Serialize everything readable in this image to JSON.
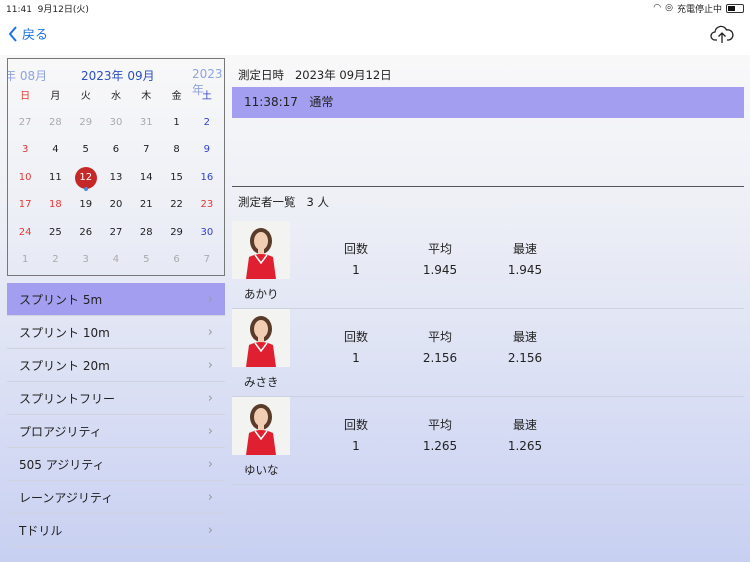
{
  "status_bar": {
    "time": "11:41",
    "date": "9月12日(火)",
    "charging": "充電停止中"
  },
  "nav": {
    "back_label": "戻る"
  },
  "calendar": {
    "prev_month": "年 08月",
    "current_month": "2023年 09月",
    "next_month": "2023年",
    "weekdays": [
      "日",
      "月",
      "火",
      "水",
      "木",
      "金",
      "土"
    ],
    "weeks": [
      [
        "27",
        "28",
        "29",
        "30",
        "31",
        "1",
        "2"
      ],
      [
        "3",
        "4",
        "5",
        "6",
        "7",
        "8",
        "9"
      ],
      [
        "10",
        "11",
        "12",
        "13",
        "14",
        "15",
        "16"
      ],
      [
        "17",
        "18",
        "19",
        "20",
        "21",
        "22",
        "23"
      ],
      [
        "24",
        "25",
        "26",
        "27",
        "28",
        "29",
        "30"
      ],
      [
        "1",
        "2",
        "3",
        "4",
        "5",
        "6",
        "7"
      ]
    ],
    "selected": "12",
    "holidays": [
      "18",
      "23"
    ]
  },
  "menu": [
    {
      "label": "スプリント 5m",
      "active": true
    },
    {
      "label": "スプリント 10m"
    },
    {
      "label": "スプリント 20m"
    },
    {
      "label": "スプリントフリー"
    },
    {
      "label": "プロアジリティ"
    },
    {
      "label": "505 アジリティ"
    },
    {
      "label": "レーンアジリティ"
    },
    {
      "label": "Tドリル"
    }
  ],
  "detail": {
    "date_label": "測定日時",
    "date_value": "2023年 09月12日",
    "session_time": "11:38:17",
    "session_type": "通常",
    "count_label": "測定者一覧",
    "count_value": "3 人"
  },
  "stat_headers": [
    "回数",
    "平均",
    "最速"
  ],
  "people": [
    {
      "name": "あかり",
      "stats": [
        "1",
        "1.945",
        "1.945"
      ]
    },
    {
      "name": "みさき",
      "stats": [
        "1",
        "2.156",
        "2.156"
      ]
    },
    {
      "name": "ゆいな",
      "stats": [
        "1",
        "1.265",
        "1.265"
      ]
    }
  ],
  "colors": {
    "accent": "#1a73e8",
    "selected": "#a39ef0",
    "today": "#c62828"
  }
}
